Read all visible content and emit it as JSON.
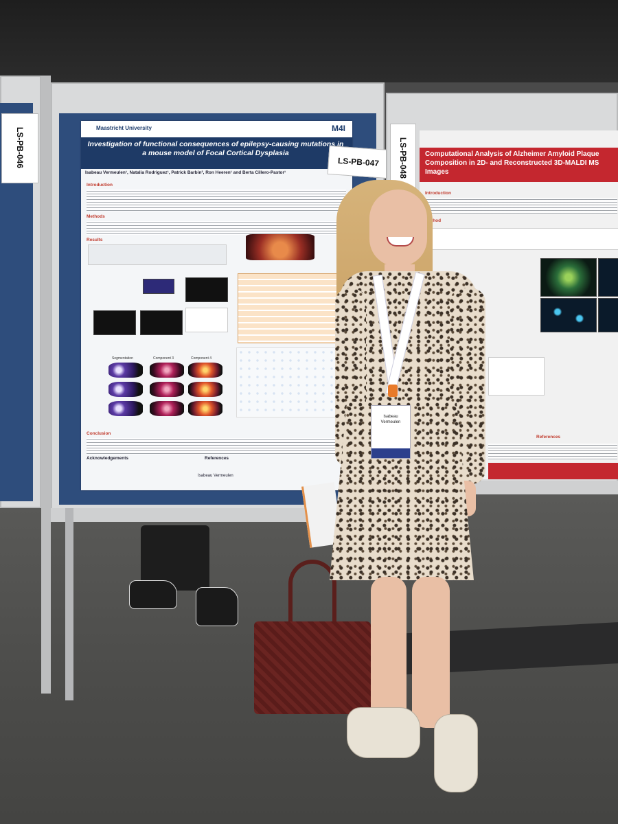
{
  "scene": {
    "description_colors": {
      "board": "#2e4d7c",
      "poster2_accent": "#c4272f",
      "poster1_title_bar": "#1e3a66"
    }
  },
  "labels": {
    "left_board": "LS-PB-046",
    "middle_board_a": "LS-PB-047",
    "middle_board_b": "LS-PB-048"
  },
  "poster1": {
    "institution": "Maastricht University",
    "logo_right": "M4I",
    "title": "Investigation of functional consequences of epilepsy-causing mutations in a mouse model of Focal Cortical Dysplasia",
    "authors": "Isabeau Vermeulen¹, Natalia Rodriguez¹, Patrick Barbin², Ron Heeren¹ and Berta Cillero-Pastor¹",
    "sections": {
      "introduction": "Introduction",
      "methods": "Methods",
      "results": "Results",
      "conclusion": "Conclusion",
      "acknowledgements": "Acknowledgements",
      "references": "References"
    },
    "panel_labels": [
      "Segmentation",
      "Component 3",
      "Component 4"
    ],
    "footer_name": "Isabeau Vermeulen"
  },
  "poster2": {
    "title": "Computational Analysis of Alzheimer Amyloid Plaque Composition in 2D- and Reconstructed 3D-MALDI MS Images",
    "sections": {
      "introduction": "Introduction",
      "method": "Method",
      "references": "References"
    }
  },
  "badge": {
    "name": "Isabeau Vermeulen"
  }
}
